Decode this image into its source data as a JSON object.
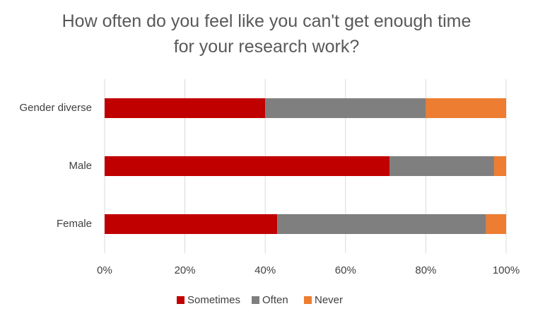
{
  "chart_data": {
    "type": "stacked-barh",
    "title": "How often do you feel like you can't get enough time for your research work?",
    "categories": [
      "Gender diverse",
      "Male",
      "Female"
    ],
    "series": [
      {
        "name": "Sometimes",
        "color": "#c00000",
        "values": [
          40,
          71,
          43
        ]
      },
      {
        "name": "Often",
        "color": "#7f7f7f",
        "values": [
          40,
          26,
          52
        ]
      },
      {
        "name": "Never",
        "color": "#ed7d31",
        "values": [
          20,
          3,
          5
        ]
      }
    ],
    "xlim": [
      0,
      100
    ],
    "xticks": [
      {
        "value": 0,
        "label": "0%"
      },
      {
        "value": 20,
        "label": "20%"
      },
      {
        "value": 40,
        "label": "40%"
      },
      {
        "value": 60,
        "label": "60%"
      },
      {
        "value": 80,
        "label": "80%"
      },
      {
        "value": 100,
        "label": "100%"
      }
    ],
    "grid": true,
    "legend": "bottom"
  }
}
